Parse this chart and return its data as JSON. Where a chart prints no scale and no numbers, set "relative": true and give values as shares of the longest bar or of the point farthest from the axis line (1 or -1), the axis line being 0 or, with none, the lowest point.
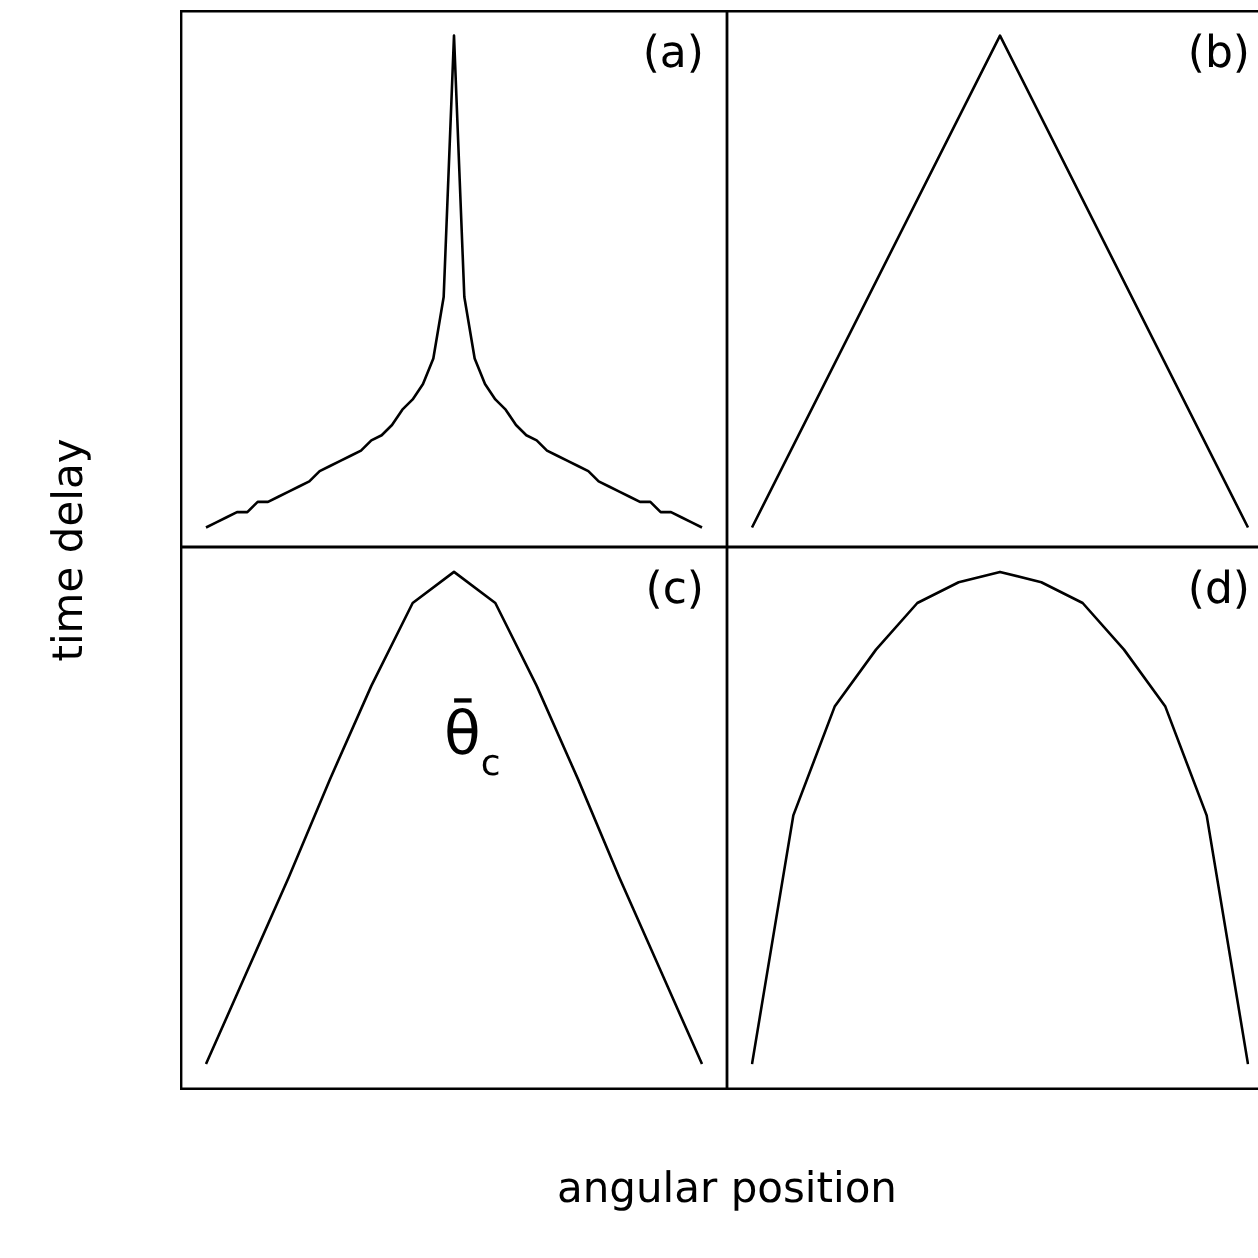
{
  "chart_data": [
    {
      "type": "line",
      "relative": true,
      "ylabel": "time delay",
      "annotations": [
        "(a)"
      ],
      "categories": [
        null,
        null,
        null,
        null,
        null,
        null,
        null,
        null,
        null,
        null,
        null,
        null,
        null,
        null,
        null,
        null,
        null,
        null,
        null,
        null,
        null,
        null,
        null,
        null,
        null,
        null,
        null,
        null,
        null,
        null,
        null,
        null,
        null,
        null,
        null,
        null,
        null,
        null,
        null,
        null,
        null,
        null,
        null,
        null,
        null,
        null,
        null,
        null,
        null
      ],
      "series": [
        {
          "color": "#000000",
          "values": [
            0.04,
            0.05,
            0.06,
            0.07,
            0.07,
            0.09,
            0.09,
            0.1,
            0.11,
            0.12,
            0.13,
            0.15,
            0.16,
            0.17,
            0.18,
            0.19,
            0.21,
            0.22,
            0.24,
            0.27,
            0.29,
            0.32,
            0.37,
            0.49,
            1,
            0.49,
            0.37,
            0.32,
            0.29,
            0.27,
            0.24,
            0.22,
            0.21,
            0.19,
            0.18,
            0.17,
            0.16,
            0.15,
            0.13,
            0.12,
            0.11,
            0.1,
            0.09,
            0.09,
            0.07,
            0.07,
            0.06,
            0.05,
            0.04
          ]
        }
      ]
    },
    {
      "type": "line",
      "relative": true,
      "annotations": [
        "(b)"
      ],
      "categories": [
        null,
        null,
        null
      ],
      "series": [
        {
          "color": "#000000",
          "values": [
            0.04,
            1,
            0.04
          ]
        }
      ]
    },
    {
      "type": "line",
      "relative": true,
      "xlabel": "angular position",
      "annotations": [
        "(c)",
        "θ̄$_{c}$"
      ],
      "categories": [
        null,
        null,
        null,
        null,
        null,
        null,
        null,
        null,
        null,
        null,
        null,
        null,
        null
      ],
      "series": [
        {
          "color": "#000000",
          "values": [
            0.05,
            0.23,
            0.41,
            0.6,
            0.78,
            0.94,
            1,
            0.94,
            0.78,
            0.6,
            0.41,
            0.23,
            0.05
          ]
        }
      ]
    },
    {
      "type": "line",
      "relative": true,
      "annotations": [
        "(d)"
      ],
      "categories": [
        null,
        null,
        null,
        null,
        null,
        null,
        null,
        null,
        null,
        null,
        null,
        null,
        null
      ],
      "series": [
        {
          "color": "#000000",
          "values": [
            0.05,
            0.53,
            0.74,
            0.85,
            0.94,
            0.98,
            1,
            0.98,
            0.94,
            0.85,
            0.74,
            0.53,
            0.05
          ]
        }
      ]
    }
  ]
}
